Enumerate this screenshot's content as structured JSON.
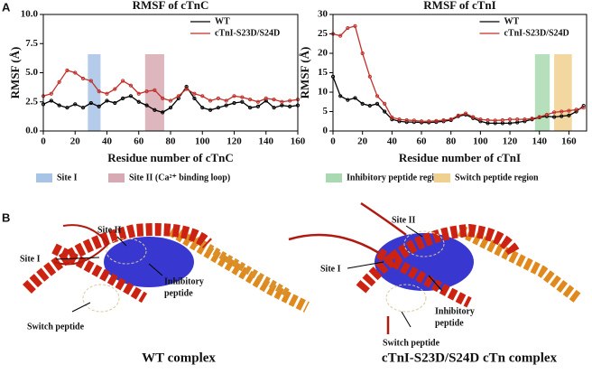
{
  "panel_a_label": "A",
  "chart_data": [
    {
      "type": "line",
      "title": "RMSF of cTnC",
      "x_label": "Residue number of cTnC",
      "y_label": "RMSF (Å)",
      "xlim": [
        0,
        160
      ],
      "xticks": [
        0,
        20,
        40,
        60,
        80,
        100,
        120,
        140,
        160
      ],
      "ylim": [
        0,
        10
      ],
      "yticks": [
        {
          "value": 0,
          "label": "0.0"
        },
        {
          "value": 2.5,
          "label": "2.5"
        },
        {
          "value": 5,
          "label": "5.0"
        },
        {
          "value": 7.5,
          "label": "7.5"
        },
        {
          "value": 10,
          "label": "10.0"
        }
      ],
      "x": [
        0,
        5,
        10,
        15,
        20,
        25,
        30,
        35,
        40,
        45,
        50,
        55,
        60,
        65,
        70,
        75,
        80,
        85,
        90,
        95,
        100,
        105,
        110,
        115,
        120,
        125,
        130,
        135,
        140,
        145,
        150,
        155,
        160
      ],
      "series": [
        {
          "name": "WT",
          "color": "#000000",
          "values": [
            2.3,
            2.6,
            2.2,
            2.0,
            2.3,
            2.0,
            2.4,
            2.1,
            2.6,
            2.4,
            2.8,
            3.0,
            2.5,
            2.2,
            1.8,
            1.6,
            2.0,
            2.8,
            3.8,
            2.8,
            2.0,
            1.8,
            2.0,
            2.2,
            2.4,
            2.5,
            2.0,
            2.1,
            2.6,
            2.0,
            2.2,
            2.1,
            2.2
          ]
        },
        {
          "name": "cTnI-S23D/S24D",
          "color": "#c0302a",
          "values": [
            3.0,
            3.2,
            4.2,
            5.2,
            5.0,
            4.5,
            4.3,
            3.4,
            3.2,
            3.6,
            4.3,
            3.9,
            3.2,
            3.4,
            3.5,
            2.8,
            2.6,
            3.0,
            3.6,
            3.2,
            3.0,
            2.6,
            2.8,
            2.6,
            3.0,
            2.9,
            2.7,
            2.5,
            2.8,
            2.7,
            2.5,
            2.6,
            2.7
          ]
        }
      ],
      "regions": [
        {
          "name": "Site I",
          "color": "#a7c3e6",
          "range": [
            28,
            36
          ]
        },
        {
          "name": "Site II (Ca²⁺ binding loop)",
          "color": "#d7a9b3",
          "range": [
            64,
            76
          ]
        }
      ]
    },
    {
      "type": "line",
      "title": "RMSF of cTnI",
      "x_label": "Residue number of cTnI",
      "y_label": "RMSF (Å)",
      "xlim": [
        0,
        172
      ],
      "xticks": [
        0,
        20,
        40,
        60,
        80,
        100,
        120,
        140,
        160
      ],
      "ylim": [
        0,
        30
      ],
      "yticks": [
        0,
        5,
        10,
        15,
        20,
        25,
        30
      ],
      "x": [
        0,
        5,
        10,
        15,
        20,
        25,
        30,
        35,
        40,
        45,
        50,
        55,
        60,
        65,
        70,
        75,
        80,
        85,
        90,
        95,
        100,
        105,
        110,
        115,
        120,
        125,
        130,
        135,
        140,
        145,
        150,
        155,
        160,
        165,
        170
      ],
      "series": [
        {
          "name": "WT",
          "color": "#000000",
          "values": [
            14,
            9,
            8,
            8.5,
            7,
            6.5,
            7,
            5,
            3,
            2.5,
            2.3,
            2.3,
            2.2,
            2.2,
            2.3,
            2.5,
            2.8,
            3.8,
            4.2,
            3.3,
            2.5,
            2.0,
            2,
            2,
            2,
            2.2,
            2.5,
            3,
            3.5,
            3.8,
            3.6,
            3.8,
            4,
            5,
            6.5
          ]
        },
        {
          "name": "cTnI-S23D/S24D",
          "color": "#c0302a",
          "values": [
            25,
            24.5,
            26.5,
            27,
            20,
            14,
            9,
            7,
            3.5,
            3,
            2.8,
            2.7,
            2.5,
            2.5,
            2.6,
            2.8,
            3,
            4,
            4.5,
            3.6,
            3,
            2.8,
            2.7,
            2.8,
            3,
            3,
            3,
            3.2,
            3.6,
            4.2,
            4.8,
            5,
            5.2,
            5.5,
            6
          ]
        }
      ],
      "regions": [
        {
          "name": "Inhibitory peptide region",
          "color": "#a9d9b0",
          "range": [
            137,
            147
          ]
        },
        {
          "name": "Switch peptide region",
          "color": "#f0d08f",
          "range": [
            150,
            162
          ]
        }
      ]
    }
  ],
  "panel_b": {
    "label": "B",
    "left": {
      "site_i": "Site I",
      "site_ii": "Site II",
      "inhibitory": [
        "Inhibitory",
        "peptide"
      ],
      "switch": "Switch peptide",
      "caption": "WT complex"
    },
    "right": {
      "site_i": "Site I",
      "site_ii": "Site II",
      "inhibitory": [
        "Inhibitory",
        "peptide"
      ],
      "switch": "Switch peptide",
      "caption": "cTnI-S23D/S24D cTn complex"
    }
  }
}
